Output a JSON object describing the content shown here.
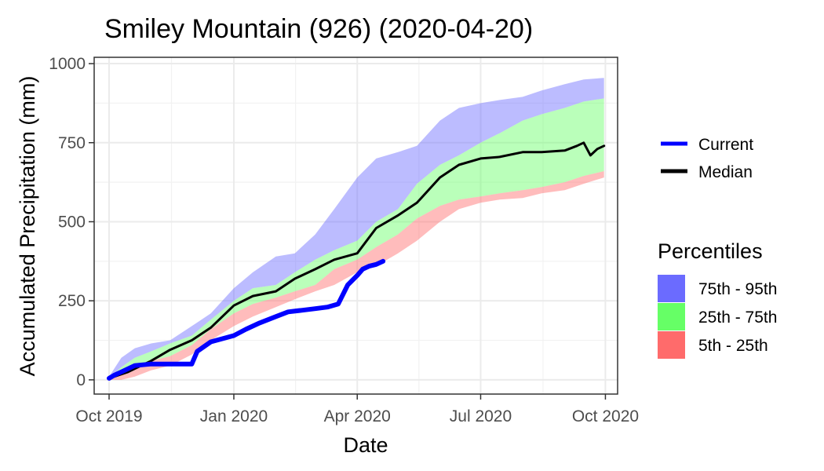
{
  "chart_data": {
    "type": "area",
    "title": "Smiley Mountain (926) (2020-04-20)",
    "xlabel": "Date",
    "ylabel": "Accumulated Precipitation (mm)",
    "x_ticks": [
      "Oct 2019",
      "Jan 2020",
      "Apr 2020",
      "Jul 2020",
      "Oct 2020"
    ],
    "x_tick_dates": [
      "2019-10-01",
      "2020-01-01",
      "2020-04-01",
      "2020-07-01",
      "2020-10-01"
    ],
    "xlim": [
      "2019-09-20",
      "2020-10-10"
    ],
    "y_ticks": [
      0,
      250,
      500,
      750,
      1000
    ],
    "ylim": [
      -45,
      1020
    ],
    "grid": true,
    "legend_position": "right",
    "colors": {
      "current": "#0000ff",
      "median": "#000000",
      "p75_95": "#6b6bff",
      "p25_75": "#66ff66",
      "p5_25": "#ff6b6b"
    },
    "legend": {
      "lines": [
        {
          "label": "Current",
          "color": "#0000ff"
        },
        {
          "label": "Median",
          "color": "#000000"
        }
      ],
      "percentiles_title": "Percentiles",
      "bands": [
        {
          "label": "75th - 95th",
          "color": "#6b6bff"
        },
        {
          "label": "25th - 75th",
          "color": "#66ff66"
        },
        {
          "label": "5th - 25th",
          "color": "#ff6b6b"
        }
      ]
    },
    "bands_x": [
      "2019-10-01",
      "2019-10-10",
      "2019-10-20",
      "2019-11-01",
      "2019-11-15",
      "2019-12-01",
      "2019-12-15",
      "2020-01-01",
      "2020-01-15",
      "2020-02-01",
      "2020-02-15",
      "2020-03-01",
      "2020-03-15",
      "2020-04-01",
      "2020-04-15",
      "2020-05-01",
      "2020-05-15",
      "2020-06-01",
      "2020-06-15",
      "2020-07-01",
      "2020-07-15",
      "2020-08-01",
      "2020-08-15",
      "2020-09-01",
      "2020-09-15",
      "2020-09-30"
    ],
    "p95": [
      10,
      70,
      100,
      115,
      125,
      170,
      210,
      290,
      340,
      390,
      400,
      460,
      540,
      640,
      700,
      720,
      740,
      820,
      860,
      875,
      885,
      895,
      915,
      935,
      950,
      955
    ],
    "p75": [
      5,
      40,
      70,
      90,
      115,
      140,
      190,
      250,
      290,
      300,
      340,
      380,
      410,
      440,
      500,
      540,
      620,
      680,
      710,
      750,
      780,
      820,
      840,
      860,
      880,
      890
    ],
    "p25": [
      0,
      15,
      35,
      60,
      75,
      110,
      160,
      210,
      240,
      260,
      280,
      300,
      350,
      380,
      420,
      460,
      510,
      550,
      570,
      580,
      590,
      600,
      610,
      625,
      645,
      660
    ],
    "p5": [
      0,
      0,
      10,
      30,
      45,
      80,
      125,
      170,
      200,
      230,
      255,
      280,
      300,
      340,
      360,
      400,
      440,
      500,
      540,
      560,
      570,
      575,
      590,
      600,
      620,
      640
    ],
    "median_x": [
      "2019-10-01",
      "2019-10-15",
      "2019-11-01",
      "2019-11-15",
      "2019-12-01",
      "2019-12-15",
      "2020-01-01",
      "2020-01-15",
      "2020-02-01",
      "2020-02-15",
      "2020-03-01",
      "2020-03-15",
      "2020-04-01",
      "2020-04-15",
      "2020-05-01",
      "2020-05-15",
      "2020-06-01",
      "2020-06-15",
      "2020-07-01",
      "2020-07-15",
      "2020-08-01",
      "2020-08-15",
      "2020-09-01",
      "2020-09-10",
      "2020-09-15",
      "2020-09-20",
      "2020-09-25",
      "2020-09-30"
    ],
    "median_y": [
      5,
      25,
      60,
      95,
      125,
      165,
      235,
      265,
      280,
      320,
      350,
      380,
      400,
      480,
      520,
      560,
      640,
      680,
      700,
      705,
      720,
      720,
      725,
      740,
      750,
      710,
      730,
      740
    ],
    "current_x": [
      "2019-10-01",
      "2019-10-05",
      "2019-10-10",
      "2019-10-20",
      "2019-11-01",
      "2019-11-15",
      "2019-12-01",
      "2019-12-05",
      "2019-12-15",
      "2020-01-01",
      "2020-01-10",
      "2020-01-20",
      "2020-02-01",
      "2020-02-10",
      "2020-02-20",
      "2020-03-01",
      "2020-03-10",
      "2020-03-18",
      "2020-03-25",
      "2020-04-01",
      "2020-04-05",
      "2020-04-10",
      "2020-04-15",
      "2020-04-20"
    ],
    "current_y": [
      5,
      15,
      25,
      45,
      50,
      50,
      50,
      90,
      120,
      140,
      160,
      180,
      200,
      215,
      220,
      225,
      230,
      240,
      300,
      330,
      350,
      360,
      365,
      375
    ]
  }
}
